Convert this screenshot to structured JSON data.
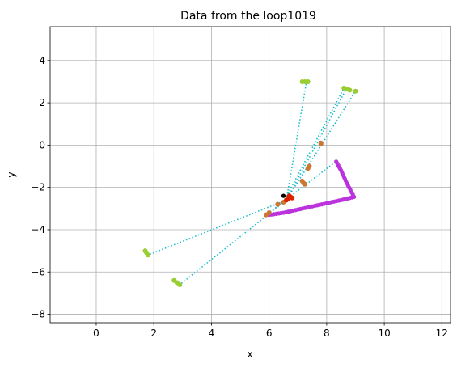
{
  "chart_data": {
    "type": "scatter",
    "title": "Data from the loop1019",
    "xlabel": "x",
    "ylabel": "y",
    "xlim": [
      -1.6,
      12.3
    ],
    "ylim": [
      -8.4,
      5.6
    ],
    "xticks": [
      0,
      2,
      4,
      6,
      8,
      10,
      12
    ],
    "yticks": [
      -8,
      -6,
      -4,
      -2,
      0,
      2,
      4
    ],
    "grid": true,
    "colors": {
      "path": "#9900cc",
      "path_points": "#bb33dd",
      "rays": "#17becf",
      "endpoints": "#9acd32",
      "midpoints": "#cc7733",
      "origin_points": "#dd2200",
      "marker": "#000000"
    },
    "path": {
      "x": [
        6.0,
        6.5,
        7.0,
        7.5,
        8.0,
        8.5,
        8.95,
        8.7,
        8.5,
        8.3
      ],
      "y": [
        -3.3,
        -3.2,
        -3.05,
        -2.9,
        -2.75,
        -2.6,
        -2.45,
        -1.8,
        -1.2,
        -0.7
      ]
    },
    "rays": [
      {
        "from": [
          6.6,
          -2.6
        ],
        "to": [
          7.3,
          3.0
        ]
      },
      {
        "from": [
          6.6,
          -2.6
        ],
        "to": [
          8.7,
          2.7
        ]
      },
      {
        "from": [
          6.6,
          -2.6
        ],
        "to": [
          9.0,
          2.55
        ]
      },
      {
        "from": [
          6.6,
          -2.6
        ],
        "to": [
          1.8,
          -5.2
        ]
      },
      {
        "from": [
          6.6,
          -2.6
        ],
        "to": [
          2.9,
          -6.6
        ]
      },
      {
        "from": [
          5.95,
          -3.25
        ],
        "to": [
          8.3,
          -0.8
        ]
      },
      {
        "from": [
          6.5,
          -2.7
        ],
        "to": [
          8.6,
          2.7
        ]
      }
    ],
    "endpoints": {
      "x": [
        7.15,
        7.25,
        7.35,
        8.6,
        8.7,
        8.8,
        9.0,
        1.7,
        1.75,
        1.8,
        2.7,
        2.8,
        2.9
      ],
      "y": [
        3.0,
        3.0,
        3.0,
        2.7,
        2.65,
        2.6,
        2.55,
        -5.0,
        -5.1,
        -5.2,
        -6.4,
        -6.5,
        -6.6
      ]
    },
    "midpoints": {
      "x": [
        7.8,
        7.8,
        7.35,
        7.4,
        7.15,
        7.2,
        7.25,
        6.6,
        6.5,
        6.3,
        6.0,
        5.9
      ],
      "y": [
        0.1,
        0.05,
        -1.1,
        -1.0,
        -1.7,
        -1.8,
        -1.85,
        -2.6,
        -2.7,
        -2.8,
        -3.2,
        -3.3
      ]
    },
    "origin_points": {
      "x": [
        6.7,
        6.75,
        6.8,
        6.65,
        6.6
      ],
      "y": [
        -2.4,
        -2.45,
        -2.5,
        -2.55,
        -2.6
      ]
    },
    "marker": {
      "x": 6.5,
      "y": -2.4
    }
  }
}
